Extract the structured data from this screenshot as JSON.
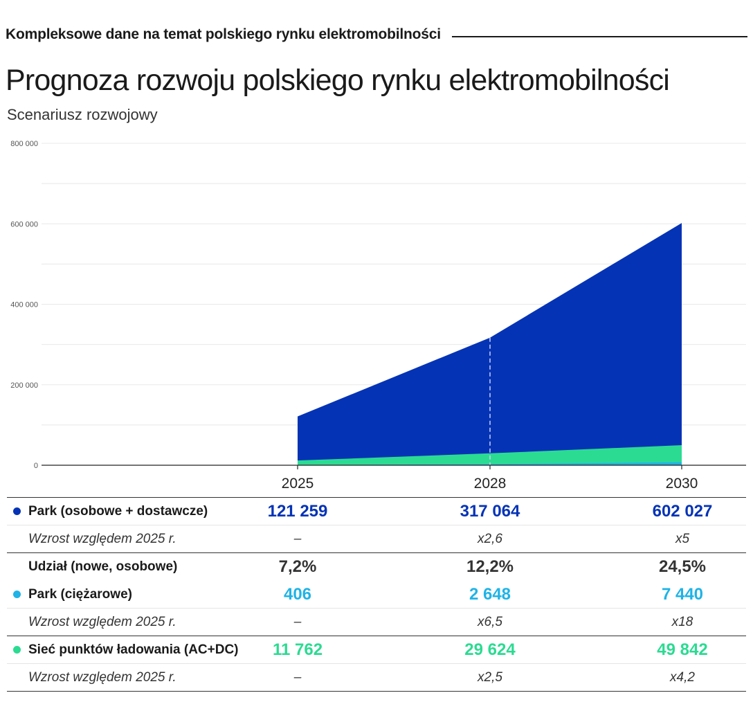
{
  "header": {
    "kicker": "Kompleksowe dane na temat polskiego rynku elektromobilności",
    "title": "Prognoza rozwoju polskiego rynku elektromobilności",
    "subtitle": "Scenariusz rozwojowy"
  },
  "colors": {
    "navy": "#0433b5",
    "green": "#2bdb92",
    "cyan": "#1fb3e6",
    "dark": "#333333"
  },
  "chart_data": {
    "type": "area",
    "x": [
      "2025",
      "2028",
      "2030"
    ],
    "series": [
      {
        "name": "Park (osobowe + dostawcze)",
        "values": [
          121259,
          317064,
          602027
        ],
        "color": "#0433b5"
      },
      {
        "name": "Sieć punktów ładowania (AC+DC)",
        "values": [
          11762,
          29624,
          49842
        ],
        "color": "#2bdb92"
      },
      {
        "name": "Park (ciężarowe)",
        "values": [
          406,
          2648,
          7440
        ],
        "color": "#1fb3e6"
      }
    ],
    "ylim": [
      0,
      800000
    ],
    "yticks": [
      0,
      200000,
      400000,
      600000,
      800000
    ],
    "ytick_labels": [
      "0",
      "200 000",
      "400 000",
      "600 000",
      "800 000"
    ],
    "marker_x": "2028"
  },
  "table": {
    "rows": [
      {
        "label": "Park (osobowe + dostawcze)",
        "style": "main",
        "dot": "#0433b5",
        "color": "#0433b5",
        "values": [
          "121 259",
          "317 064",
          "602 027"
        ]
      },
      {
        "label": "Wzrost względem 2025 r.",
        "style": "sub",
        "values": [
          "–",
          "x2,6",
          "x5"
        ]
      },
      {
        "label": "Udział (nowe, osobowe)",
        "style": "main",
        "color": "#333333",
        "values": [
          "7,2%",
          "12,2%",
          "24,5%"
        ]
      },
      {
        "label": "Park (ciężarowe)",
        "style": "main",
        "dot": "#1fb3e6",
        "color": "#1fb3e6",
        "values": [
          "406",
          "2 648",
          "7 440"
        ]
      },
      {
        "label": "Wzrost względem 2025 r.",
        "style": "sub",
        "values": [
          "–",
          "x6,5",
          "x18"
        ]
      },
      {
        "label": "Sieć punktów ładowania (AC+DC)",
        "style": "main",
        "dot": "#2bdb92",
        "color": "#2bdb92",
        "values": [
          "11 762",
          "29 624",
          "49 842"
        ]
      },
      {
        "label": "Wzrost względem 2025 r.",
        "style": "sub",
        "values": [
          "–",
          "x2,5",
          "x4,2"
        ]
      }
    ]
  }
}
